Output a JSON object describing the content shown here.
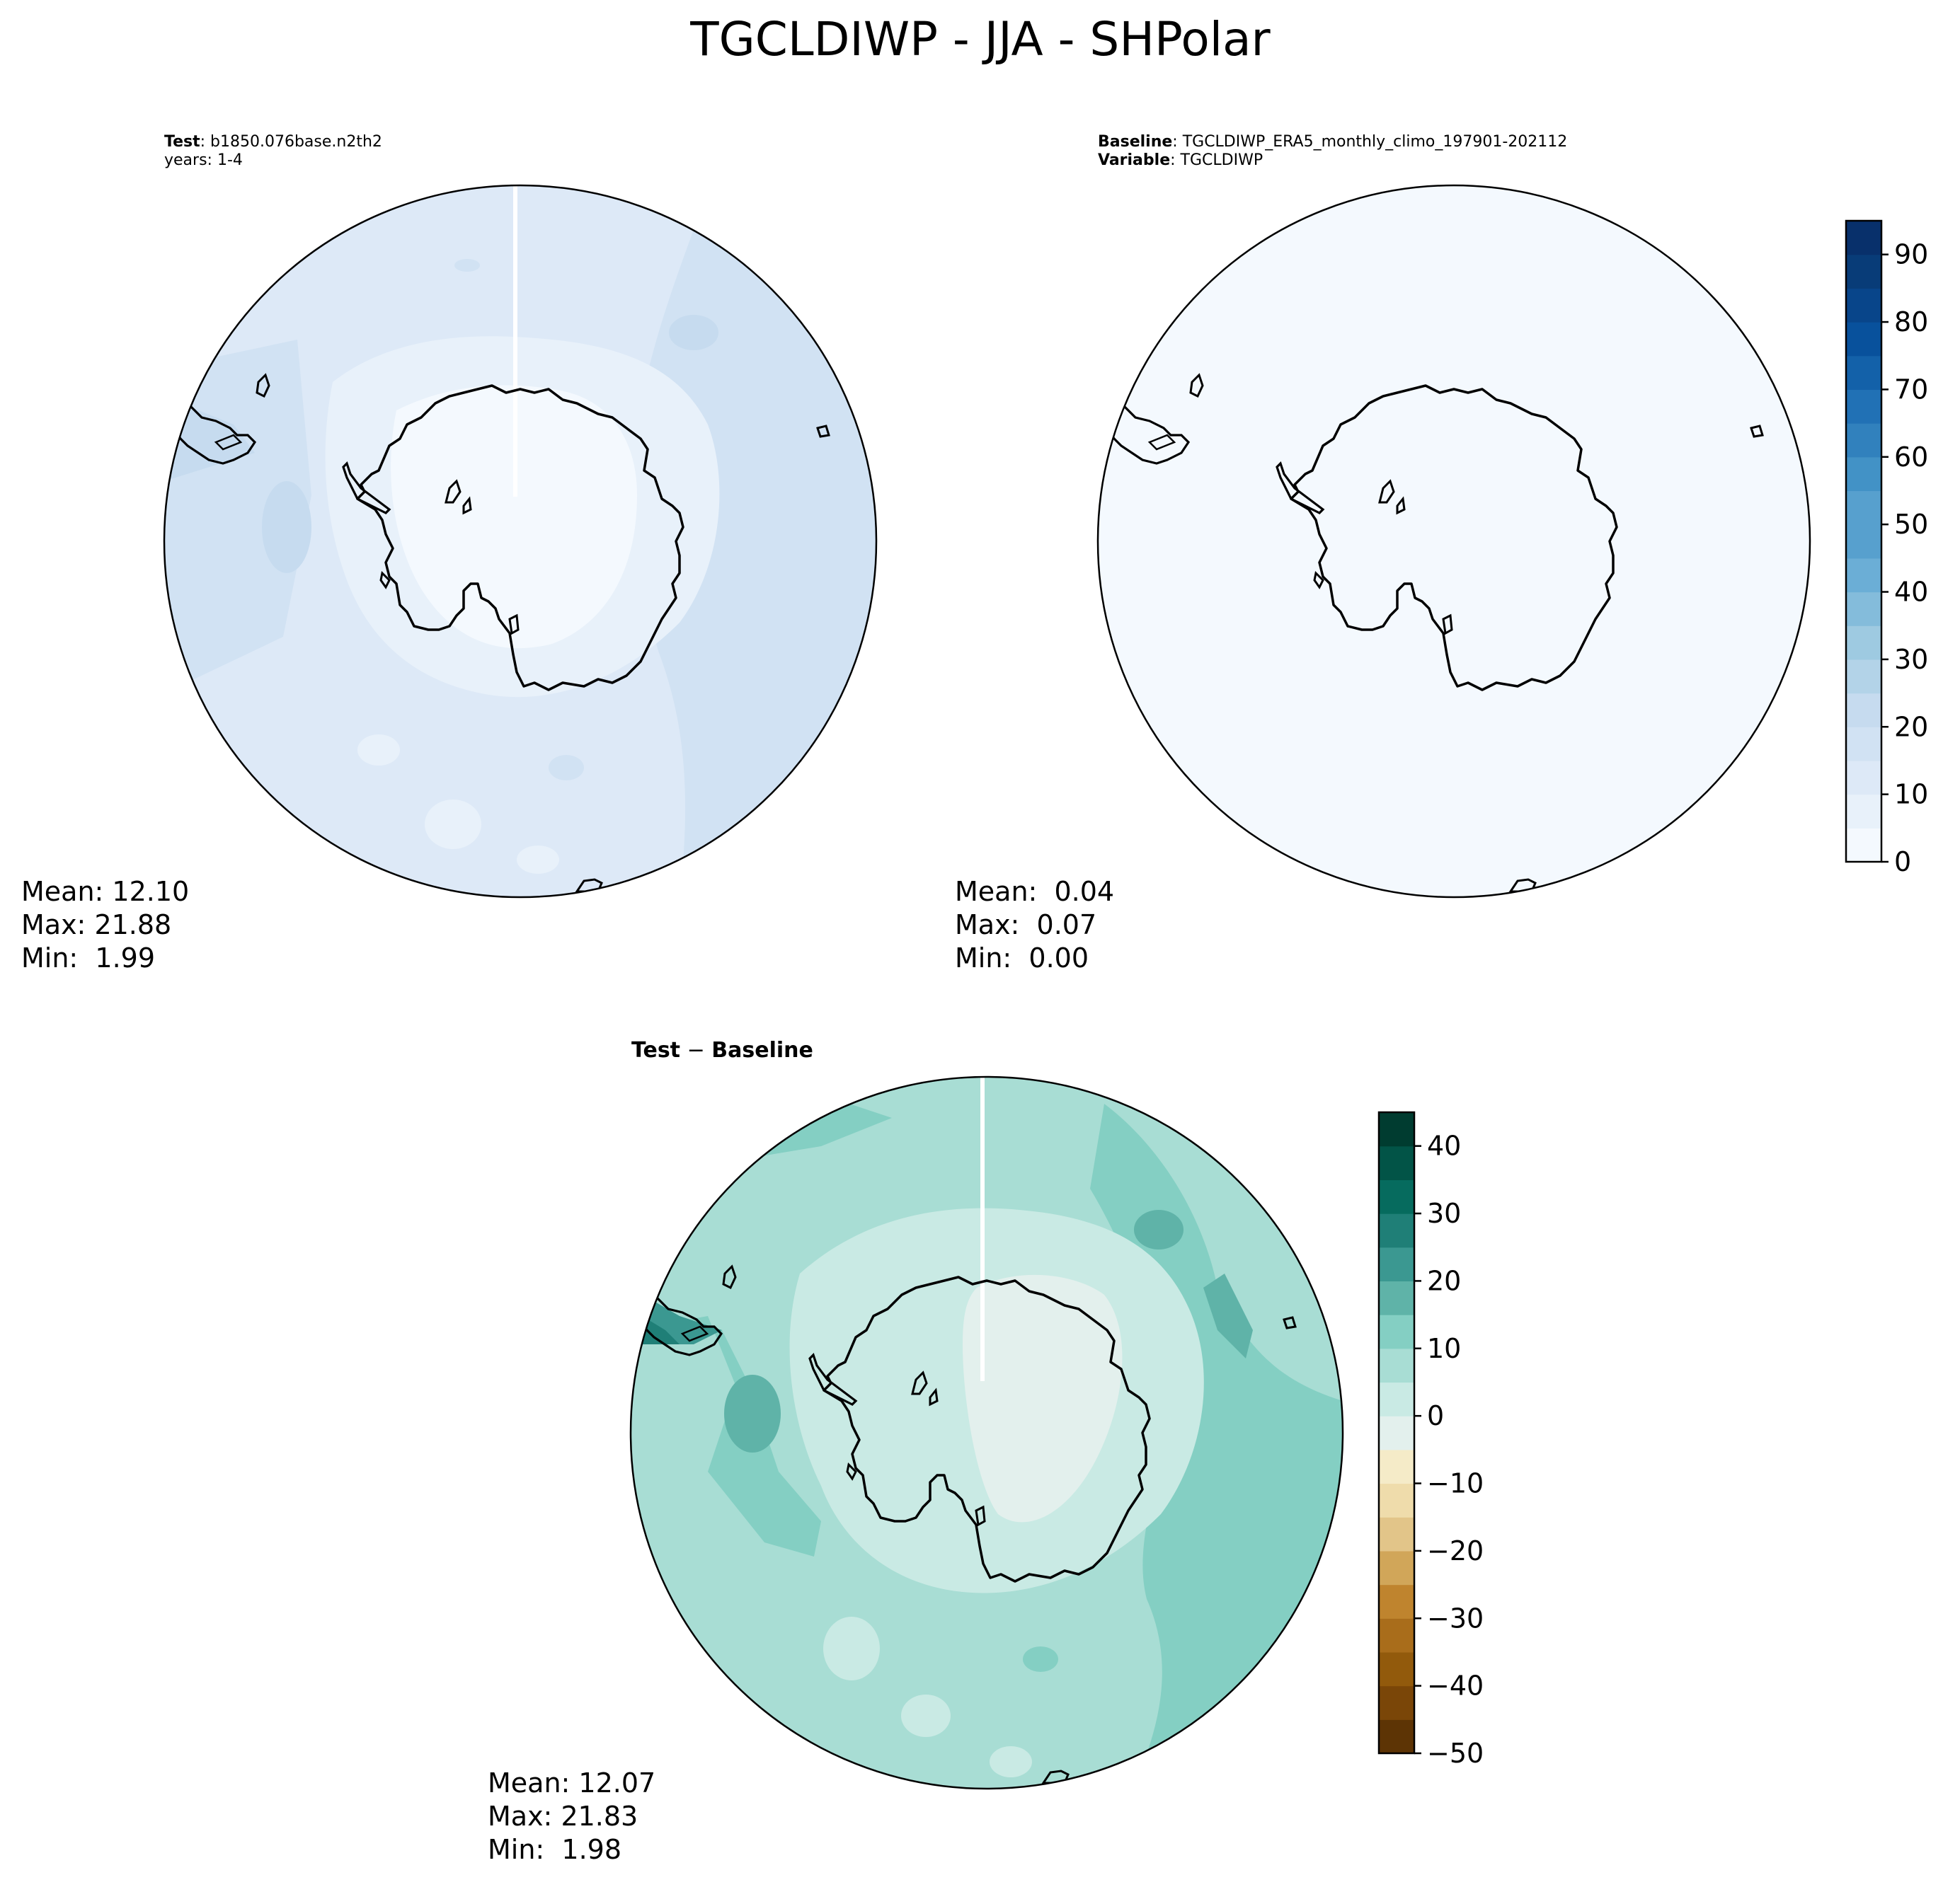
{
  "figure_title": "TGCLDIWP - JJA - SHPolar",
  "colors": {
    "land_outline": "#000000",
    "blues": [
      "#f4f9fe",
      "#e8f1fa",
      "#dde9f7",
      "#d1e2f3",
      "#c6dbef",
      "#b3d3e8",
      "#9ecae1",
      "#84bcdb",
      "#6baed6",
      "#57a0ce",
      "#4292c6",
      "#3181bd",
      "#2171b5",
      "#1361a9",
      "#08519c",
      "#08458a",
      "#083c78",
      "#08306b"
    ],
    "brbg": [
      "#5d3405",
      "#7a4608",
      "#925a0c",
      "#a96d1b",
      "#bf842e",
      "#d1a659",
      "#e2c589",
      "#efdcab",
      "#f5ebc8",
      "#f5f0e3",
      "#e3f0ed",
      "#c9eae4",
      "#a8ddd4",
      "#84cfc3",
      "#5fb3a8",
      "#3b9891",
      "#1f7f77",
      "#066b5e",
      "#025447",
      "#003c30"
    ]
  },
  "chart_data": [
    {
      "type": "heatmap",
      "projection": "south-polar-stereographic",
      "title_lines": [
        {
          "bold": "Test",
          "text": ": b1850.076base.n2th2"
        },
        {
          "bold": "",
          "text": "years: 1-4"
        }
      ],
      "stats": {
        "mean": "Mean: 12.10",
        "max": "Max: 21.88",
        "min": "Min:  1.99"
      },
      "colormap": "Blues",
      "value_range": [
        0,
        95
      ],
      "field_summary": {
        "mean": 12.1,
        "max": 21.88,
        "min": 1.99
      }
    },
    {
      "type": "heatmap",
      "projection": "south-polar-stereographic",
      "title_lines": [
        {
          "bold": "Baseline",
          "text": ": TGCLDIWP_ERA5_monthly_climo_197901-202112"
        },
        {
          "bold": "Variable",
          "text": ": TGCLDIWP"
        }
      ],
      "stats": {
        "mean": "Mean:  0.04",
        "max": "Max:  0.07",
        "min": "Min:  0.00"
      },
      "colormap": "Blues",
      "value_range": [
        0,
        95
      ],
      "field_summary": {
        "mean": 0.04,
        "max": 0.07,
        "min": 0.0
      }
    },
    {
      "type": "heatmap",
      "projection": "south-polar-stereographic",
      "title_lines": [
        {
          "bold": "Test",
          "text": " − ",
          "bold2": "Baseline"
        }
      ],
      "stats": {
        "mean": "Mean: 12.07",
        "max": "Max: 21.83",
        "min": "Min:  1.98"
      },
      "colormap": "BrBG",
      "value_range": [
        -50,
        45
      ],
      "field_summary": {
        "mean": 12.07,
        "max": 21.83,
        "min": 1.98
      }
    }
  ],
  "colorbars": [
    {
      "name": "colorbar-absolute",
      "levels": [
        0,
        5,
        10,
        15,
        20,
        25,
        30,
        35,
        40,
        45,
        50,
        55,
        60,
        65,
        70,
        75,
        80,
        85,
        90,
        95
      ],
      "tick_labels": [
        "0",
        "10",
        "20",
        "30",
        "40",
        "50",
        "60",
        "70",
        "80",
        "90"
      ],
      "tick_values": [
        0,
        10,
        20,
        30,
        40,
        50,
        60,
        70,
        80,
        90
      ]
    },
    {
      "name": "colorbar-difference",
      "levels": [
        -50,
        -45,
        -40,
        -35,
        -30,
        -25,
        -20,
        -15,
        -10,
        -5,
        0,
        5,
        10,
        15,
        20,
        25,
        30,
        35,
        40,
        45
      ],
      "tick_labels": [
        "−50",
        "−40",
        "−30",
        "−20",
        "−10",
        "0",
        "10",
        "20",
        "30",
        "40"
      ],
      "tick_values": [
        -50,
        -40,
        -30,
        -20,
        -10,
        0,
        10,
        20,
        30,
        40
      ]
    }
  ]
}
